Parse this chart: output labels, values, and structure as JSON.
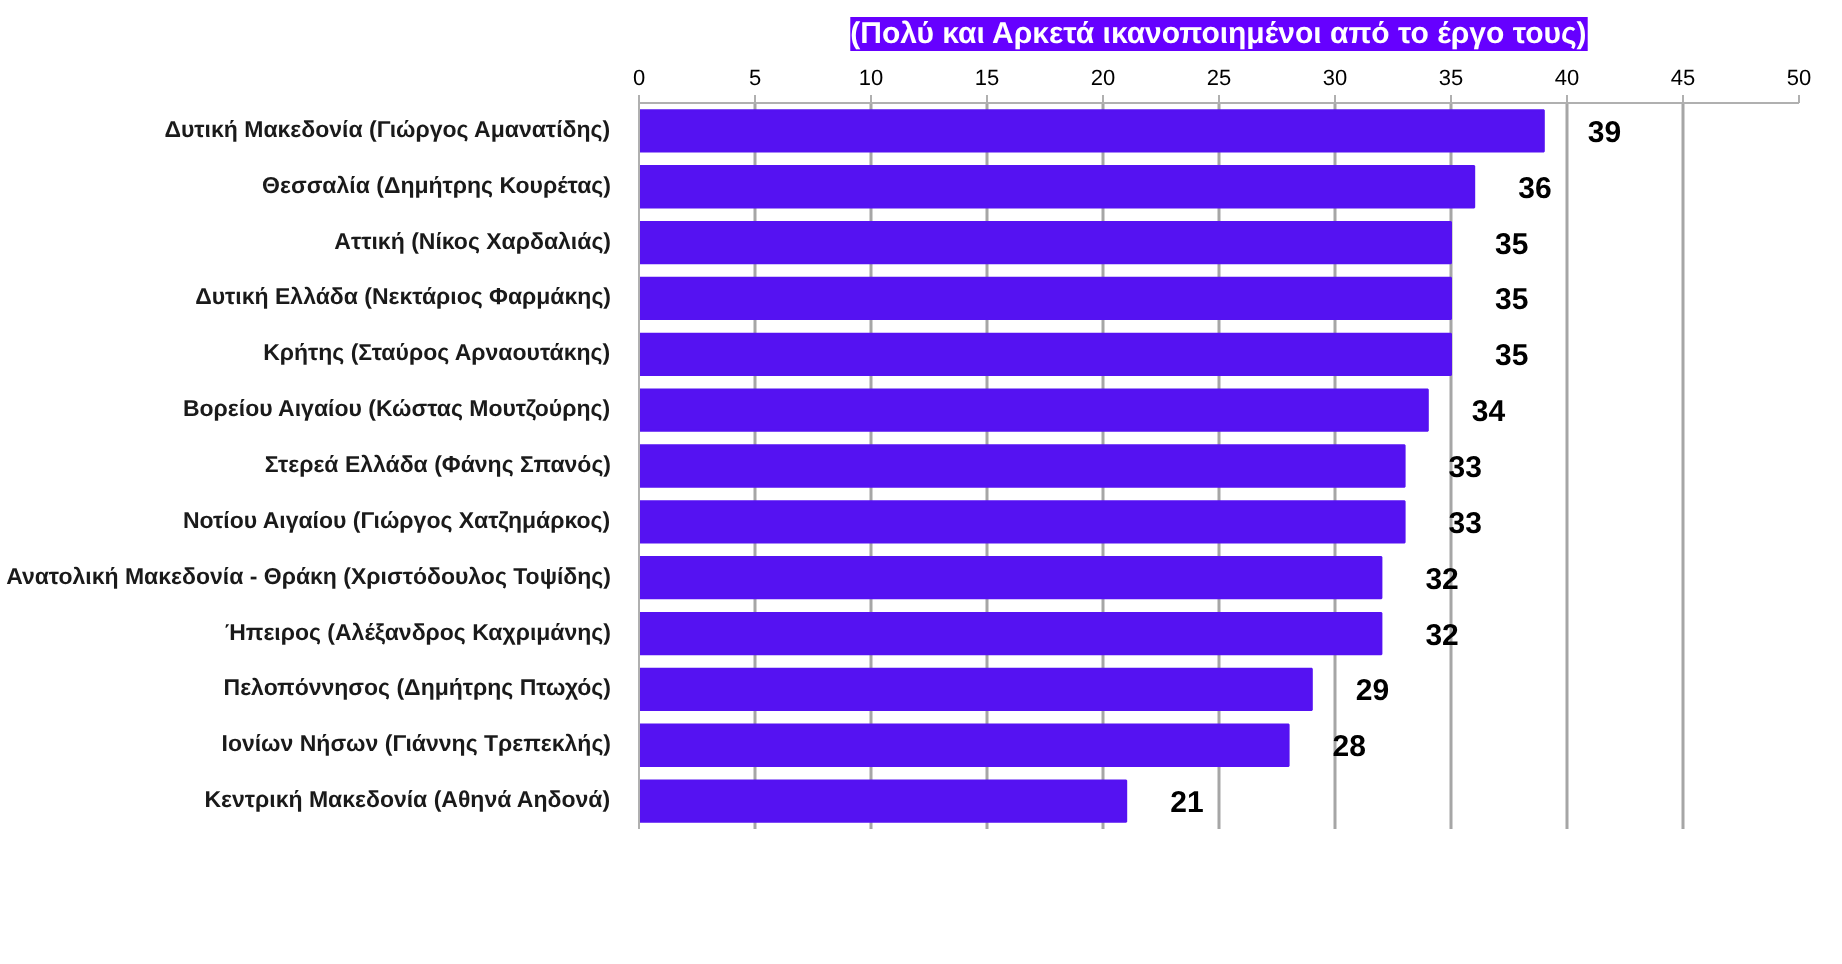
{
  "chart_data": {
    "type": "bar",
    "orientation": "horizontal",
    "title": "(Πολύ και Αρκετά ικανοποιημένοι από το έργο τους)",
    "categories": [
      "Δυτική Μακεδονία (Γιώργος Αμανατίδης)",
      "Θεσσαλία (Δημήτρης Κουρέτας)",
      "Αττική (Νίκος Χαρδαλιάς)",
      "Δυτική Ελλάδα (Νεκτάριος Φαρμάκης)",
      "Κρήτης (Σταύρος Αρναουτάκης)",
      "Βορείου Αιγαίου (Κώστας Μουτζούρης)",
      "Στερεά Ελλάδα (Φάνης Σπανός)",
      "Νοτίου Αιγαίου (Γιώργος Χατζημάρκος)",
      "Ανατολική Μακεδονία - Θράκη (Χριστόδουλος Τοψίδης)",
      "Ήπειρος (Αλέξανδρος Καχριμάνης)",
      "Πελοπόννησος (Δημήτρης Πτωχός)",
      "Ιονίων Νήσων (Γιάννης Τρεπεκλής)",
      "Κεντρική Μακεδονία (Αθηνά Αηδονά)"
    ],
    "values": [
      39,
      36,
      35,
      35,
      35,
      34,
      33,
      33,
      32,
      32,
      29,
      28,
      21
    ],
    "color": "#5512f2",
    "xlim": [
      0,
      50
    ],
    "xticks": [
      0,
      5,
      10,
      15,
      20,
      25,
      30,
      35,
      40,
      45,
      50
    ],
    "grid": "x",
    "data_labels": true
  }
}
